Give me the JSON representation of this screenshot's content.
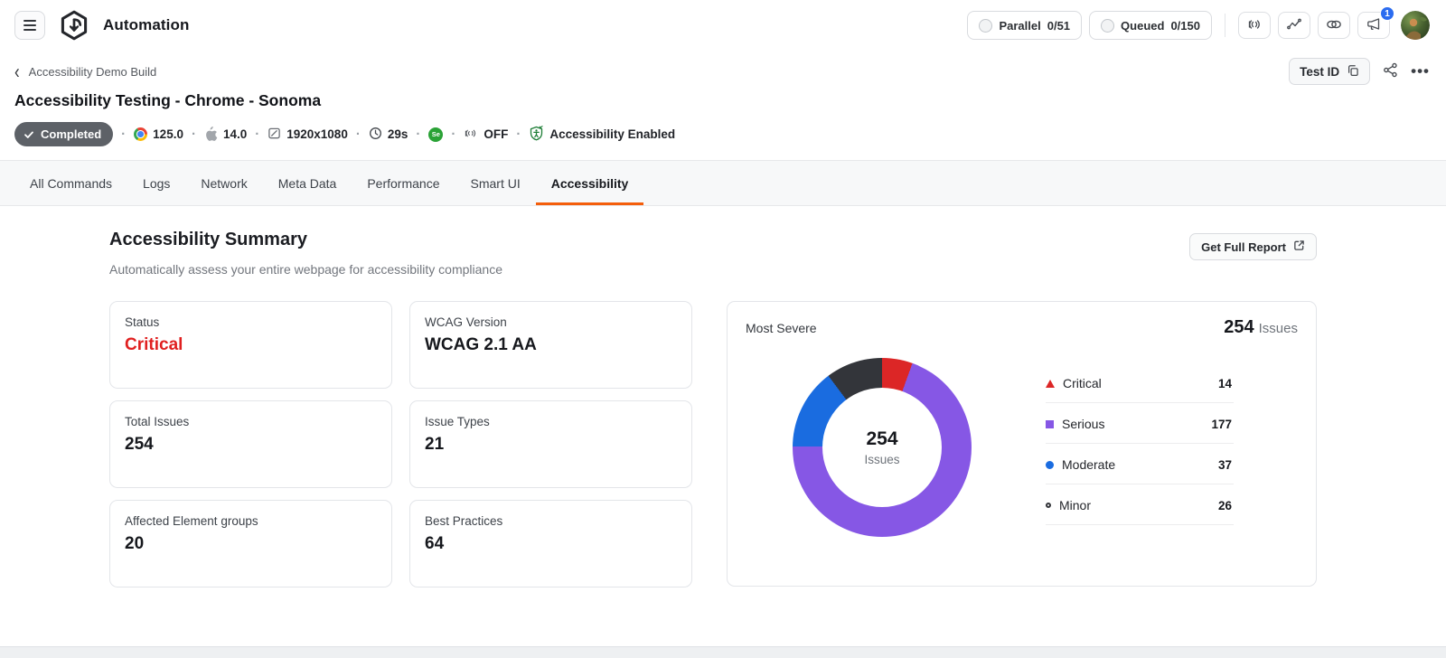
{
  "header": {
    "app_title": "Automation",
    "parallel": {
      "label": "Parallel",
      "value": "0/51"
    },
    "queued": {
      "label": "Queued",
      "value": "0/150"
    },
    "notification_count": "1"
  },
  "breadcrumb": {
    "back_label": "Accessibility Demo Build"
  },
  "test": {
    "title": "Accessibility Testing - Chrome - Sonoma",
    "test_id_label": "Test ID",
    "status_badge": "Completed",
    "meta": {
      "browser_version": "125.0",
      "os_version": "14.0",
      "resolution": "1920x1080",
      "duration": "29s",
      "selenium_label": "Se",
      "network": "OFF",
      "accessibility": "Accessibility Enabled"
    }
  },
  "tabs": [
    {
      "label": "All Commands",
      "active": false
    },
    {
      "label": "Logs",
      "active": false
    },
    {
      "label": "Network",
      "active": false
    },
    {
      "label": "Meta Data",
      "active": false
    },
    {
      "label": "Performance",
      "active": false
    },
    {
      "label": "Smart UI",
      "active": false
    },
    {
      "label": "Accessibility",
      "active": true
    }
  ],
  "summary": {
    "title": "Accessibility Summary",
    "subtitle": "Automatically assess your entire webpage for accessibility compliance",
    "report_button": "Get Full Report",
    "cards": [
      {
        "label": "Status",
        "value": "Critical",
        "value_color": "#e02020"
      },
      {
        "label": "WCAG Version",
        "value": "WCAG 2.1 AA"
      },
      {
        "label": "Total Issues",
        "value": "254"
      },
      {
        "label": "Issue Types",
        "value": "21"
      },
      {
        "label": "Affected Element groups",
        "value": "20"
      },
      {
        "label": "Best Practices",
        "value": "64"
      }
    ]
  },
  "chart_data": {
    "type": "pie",
    "title": "Most Severe",
    "total": 254,
    "total_label": "Issues",
    "categories": [
      "Critical",
      "Serious",
      "Moderate",
      "Minor"
    ],
    "values": [
      14,
      177,
      37,
      26
    ],
    "colors": [
      "#dc2626",
      "#8657e5",
      "#1a6ce0",
      "#33353a"
    ],
    "markers": [
      "triangle",
      "square",
      "circle",
      "circle-outline"
    ],
    "legend_position": "right",
    "center_text": {
      "value": "254",
      "label": "Issues"
    }
  },
  "colors": {
    "accent_orange": "#f45e0b",
    "status_red": "#e02020",
    "badge_gray": "#5d6167",
    "notification_blue": "#2b6cf0"
  }
}
